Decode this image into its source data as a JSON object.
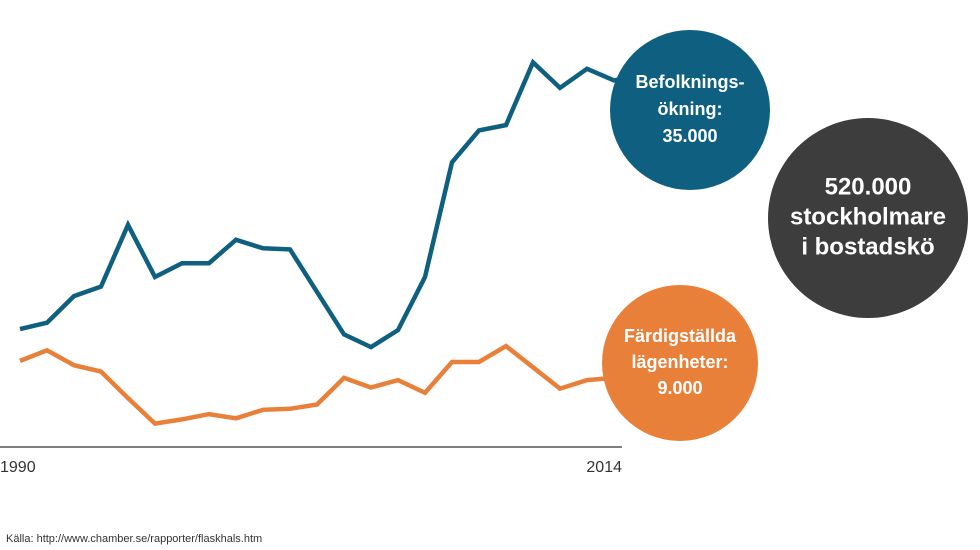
{
  "chart_data": {
    "type": "line",
    "x": [
      1990,
      1991,
      1992,
      1993,
      1994,
      1995,
      1996,
      1997,
      1998,
      1999,
      2000,
      2001,
      2002,
      2003,
      2004,
      2005,
      2006,
      2007,
      2008,
      2009,
      2010,
      2011,
      2012,
      2013,
      2014
    ],
    "xlim": [
      1990,
      2014
    ],
    "xticks": [
      1990,
      2014
    ],
    "ylim": [
      0,
      40000
    ],
    "series": [
      {
        "name": "Befolkningsökning",
        "color": "#0f6080",
        "values": [
          11100,
          11700,
          14200,
          15100,
          20900,
          16000,
          17300,
          17300,
          19500,
          18700,
          18600,
          14600,
          10600,
          9400,
          11000,
          16000,
          26800,
          29800,
          30300,
          36200,
          33800,
          35600,
          34500,
          35000,
          35500
        ]
      },
      {
        "name": "Färdigställda lägenheter",
        "color": "#e8803a",
        "values": [
          8100,
          9100,
          7700,
          7100,
          4600,
          2200,
          2600,
          3100,
          2700,
          3500,
          3600,
          4000,
          6500,
          5600,
          6300,
          5100,
          8000,
          8000,
          9500,
          7500,
          5500,
          6300,
          6500,
          6700,
          6800
        ]
      }
    ],
    "annotations": [
      {
        "lines": [
          "Befolknings-",
          "ökning:",
          "35.000"
        ],
        "color": "#0f6080"
      },
      {
        "lines": [
          "520.000",
          "stockholmare",
          "i bostadskö"
        ],
        "color": "#3d3d3d"
      },
      {
        "lines": [
          "Färdigställda",
          "lägenheter:",
          "9.000"
        ],
        "color": "#e8803a"
      }
    ],
    "source": "Källa: http://www.chamber.se/rapporter/flaskhals.htm"
  }
}
